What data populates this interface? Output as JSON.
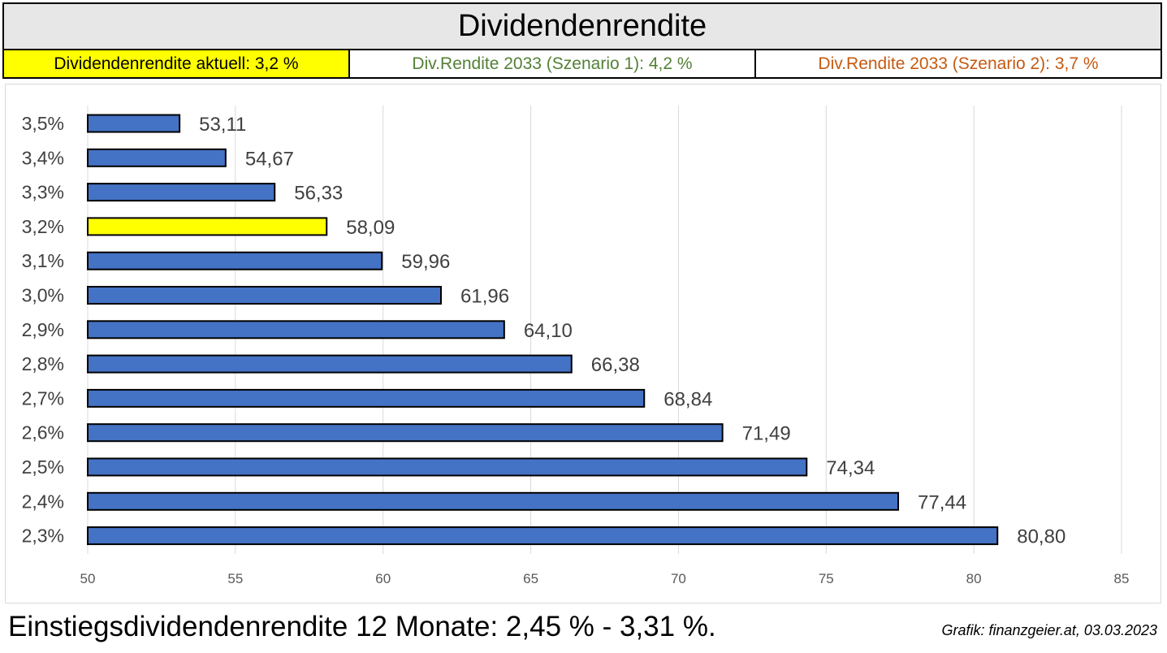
{
  "header": {
    "title": "Dividendenrendite",
    "current_label": "Dividendenrendite aktuell: 3,2 %",
    "scenario1_label": "Div.Rendite 2033 (Szenario 1): 4,2 %",
    "scenario2_label": "Div.Rendite 2033 (Szenario 2): 3,7 %"
  },
  "colors": {
    "bar": "#4472c4",
    "highlight": "#ffff00",
    "scenario1_text": "#538135",
    "scenario2_text": "#c55a11",
    "grid": "#d9d9d9"
  },
  "chart_data": {
    "type": "bar",
    "orientation": "horizontal",
    "categories": [
      "3,5%",
      "3,4%",
      "3,3%",
      "3,2%",
      "3,1%",
      "3,0%",
      "2,9%",
      "2,8%",
      "2,7%",
      "2,6%",
      "2,5%",
      "2,4%",
      "2,3%"
    ],
    "values": [
      53.11,
      54.67,
      56.33,
      58.09,
      59.96,
      61.96,
      64.1,
      66.38,
      68.84,
      71.49,
      74.34,
      77.44,
      80.8
    ],
    "value_labels": [
      "53,11",
      "54,67",
      "56,33",
      "58,09",
      "59,96",
      "61,96",
      "64,10",
      "66,38",
      "68,84",
      "71,49",
      "74,34",
      "77,44",
      "80,80"
    ],
    "highlight_category": "3,2%",
    "xlim": [
      50,
      85
    ],
    "x_ticks": [
      50,
      55,
      60,
      65,
      70,
      75,
      80,
      85
    ],
    "x_tick_labels": [
      "50",
      "55",
      "60",
      "65",
      "70",
      "75",
      "80",
      "85"
    ],
    "grid": "vertical",
    "legend": "none"
  },
  "footer": {
    "summary": "Einstiegsdividendenrendite 12 Monate: 2,45 % - 3,31 %.",
    "credit": "Grafik: finanzgeier.at, 03.03.2023"
  }
}
